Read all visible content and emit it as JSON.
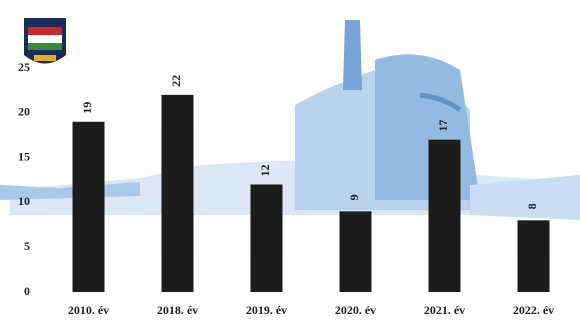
{
  "chart_data": {
    "type": "bar",
    "categories": [
      "2010. év",
      "2018. év",
      "2019. év",
      "2020. év",
      "2021. év",
      "2022. év"
    ],
    "values": [
      19,
      22,
      12,
      9,
      17,
      8
    ],
    "color": "#1c1c1c",
    "ylim": [
      0,
      25
    ],
    "yticks": [
      0,
      5,
      10,
      15,
      20,
      25
    ]
  }
}
